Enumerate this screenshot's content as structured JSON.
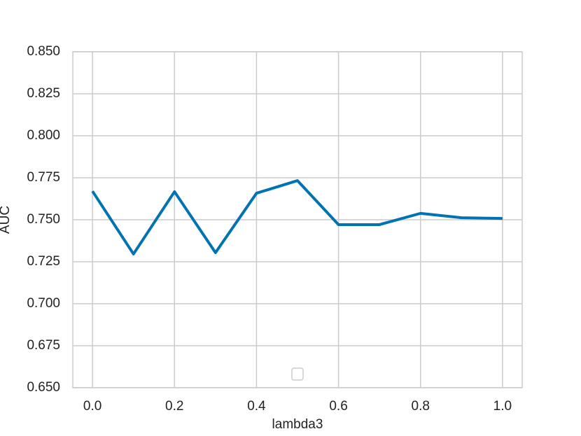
{
  "chart_data": {
    "type": "line",
    "x_label": "lambda3",
    "y_label": "AUC",
    "x": [
      0,
      0.1,
      0.2,
      0.3,
      0.4,
      0.5,
      0.6,
      0.7,
      0.8,
      0.9,
      1.0
    ],
    "series": [
      {
        "color": "#0173b2",
        "values": [
          0.767,
          0.7296,
          0.7667,
          0.7304,
          0.7658,
          0.7733,
          0.7471,
          0.7471,
          0.7538,
          0.7512,
          0.7508
        ]
      }
    ],
    "xlim": [
      -0.048,
      1.048
    ],
    "ylim": [
      0.65,
      0.85
    ],
    "xticks": [
      {
        "value": 0,
        "label": "0.0"
      },
      0.2,
      0.4,
      0.6,
      0.8,
      {
        "value": 1,
        "label": "1.0"
      }
    ],
    "yticks": [
      {
        "value": 0.65,
        "label": "0.650"
      },
      {
        "value": 0.675,
        "label": "0.675"
      },
      {
        "value": 0.7,
        "label": "0.700"
      },
      {
        "value": 0.725,
        "label": "0.725"
      },
      {
        "value": 0.75,
        "label": "0.750"
      },
      {
        "value": 0.775,
        "label": "0.775"
      },
      {
        "value": 0.8,
        "label": "0.800"
      },
      {
        "value": 0.825,
        "label": "0.825"
      },
      {
        "value": 0.85,
        "label": "0.850"
      }
    ],
    "grid": true
  }
}
